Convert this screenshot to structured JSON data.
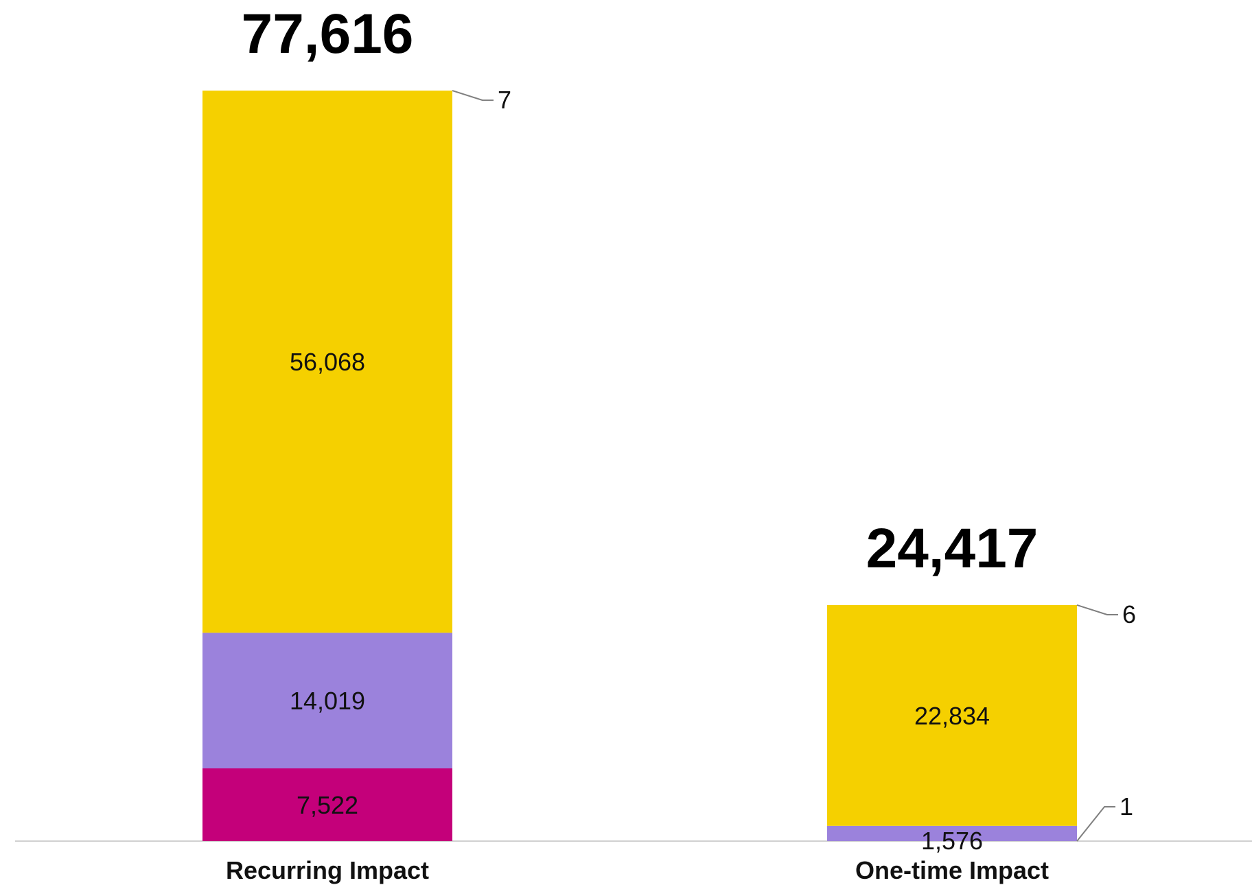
{
  "chart_data": {
    "type": "bar",
    "stacked": true,
    "title": "",
    "xlabel": "",
    "ylabel": "",
    "ylim": [
      0,
      80000
    ],
    "grid": false,
    "legend": "none",
    "categories": [
      "Recurring Impact",
      "One-time Impact"
    ],
    "totals": [
      "77,616",
      "24,417"
    ],
    "series": [
      {
        "color": "#C4007A",
        "values": [
          7522,
          0
        ],
        "labels": [
          "7,522",
          ""
        ]
      },
      {
        "color": "#9B82DC",
        "values": [
          14019,
          1576
        ],
        "labels": [
          "14,019",
          "1,576"
        ]
      },
      {
        "color": "#F5D000",
        "values": [
          56068,
          22834
        ],
        "labels": [
          "56,068",
          "22,834"
        ]
      }
    ],
    "callouts": [
      {
        "category": 0,
        "value": 7,
        "label": "7",
        "color": "#7F7F7F"
      },
      {
        "category": 1,
        "value": 1,
        "label": "1",
        "color": "#7F7F7F"
      },
      {
        "category": 1,
        "value": 6,
        "label": "6",
        "color": "#7F7F7F"
      }
    ]
  }
}
